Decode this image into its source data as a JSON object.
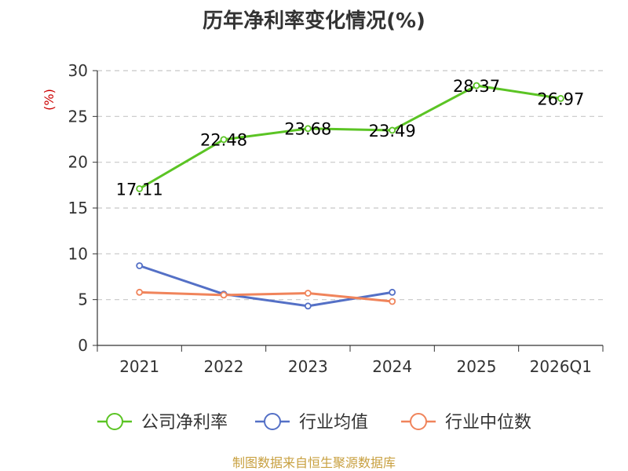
{
  "chart_data": {
    "type": "line",
    "title": "历年净利率变化情况(%)",
    "ylabel": "(%)",
    "xlabel": "",
    "categories": [
      "2021",
      "2022",
      "2023",
      "2024",
      "2025",
      "2026Q1"
    ],
    "ylim": [
      0,
      30
    ],
    "yticks": [
      0,
      5,
      10,
      15,
      20,
      25,
      30
    ],
    "grid": true,
    "legend_position": "bottom",
    "series": [
      {
        "name": "公司净利率",
        "color": "#5bc424",
        "values": [
          17.11,
          22.48,
          23.68,
          23.49,
          28.37,
          26.97
        ],
        "labels": [
          "17.11",
          "22.48",
          "23.68",
          "23.49",
          "28.37",
          "26.97"
        ]
      },
      {
        "name": "行业均值",
        "color": "#5470c6",
        "values": [
          8.7,
          5.6,
          4.3,
          5.8,
          null,
          null
        ]
      },
      {
        "name": "行业中位数",
        "color": "#f0845b",
        "values": [
          5.8,
          5.5,
          5.7,
          4.8,
          null,
          null
        ]
      }
    ]
  },
  "colors": {
    "ylabel": "#cc0000",
    "footer": "#c8a040"
  },
  "footer": "制图数据来自恒生聚源数据库"
}
